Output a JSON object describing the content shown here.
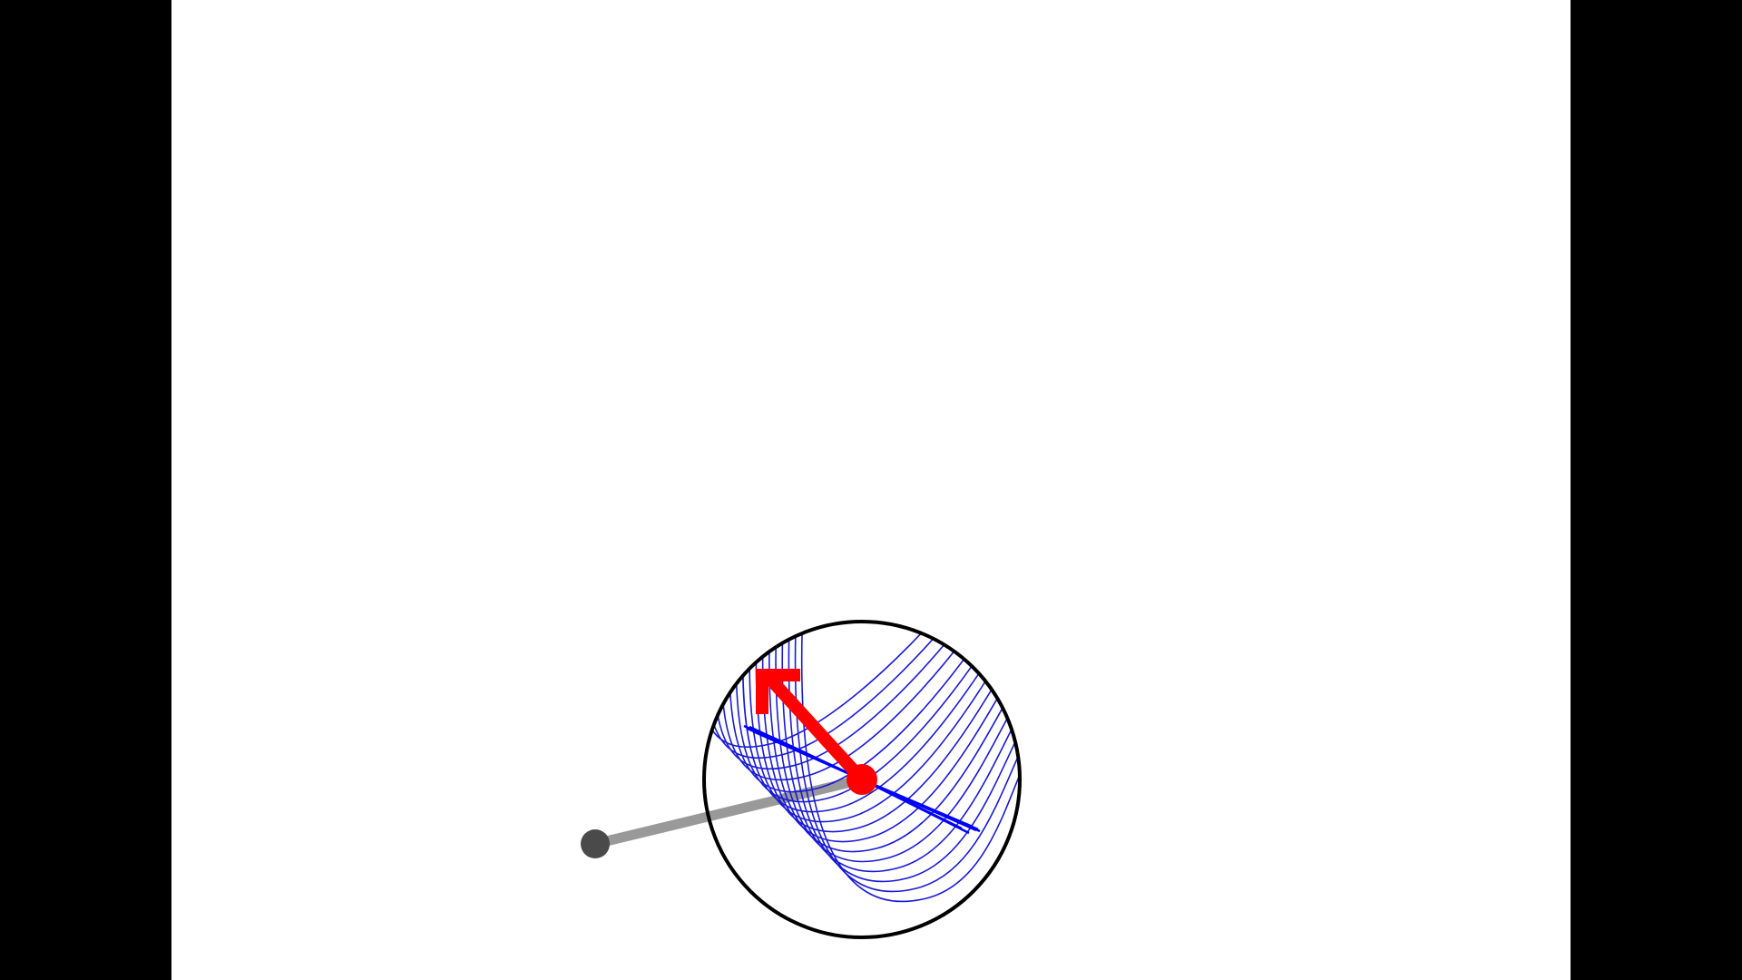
{
  "scene": {
    "background_color": "#ffffff",
    "letterbox_color": "#000000",
    "pendulum": {
      "pivot_color": "#4a4a4a",
      "rod_color": "#999999"
    },
    "bob": {
      "outline_color": "#000000",
      "contour_color": "#1a1ad6",
      "trajectory_color": "#0000ff",
      "point_color": "#ff0000",
      "arrow_color": "#ff0000"
    }
  }
}
